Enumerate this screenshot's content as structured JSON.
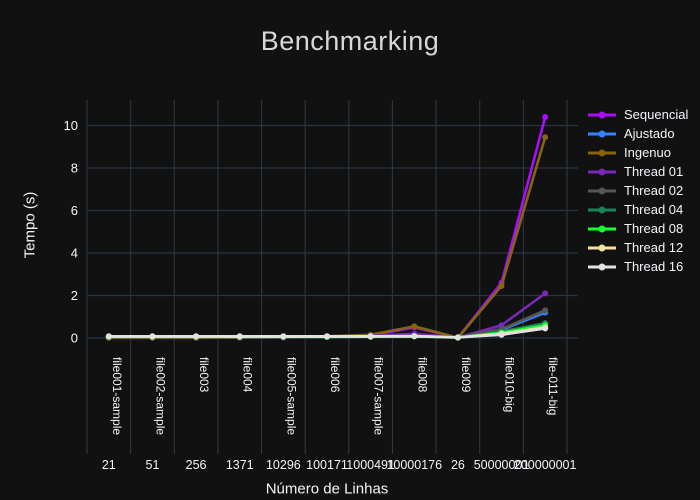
{
  "chart_data": {
    "type": "line",
    "title": "Benchmarking",
    "xlabel": "Número de Linhas",
    "ylabel": "Tempo (s)",
    "categories": [
      "file001-sample",
      "file002-sample",
      "file003",
      "file004",
      "file005-sample",
      "file006",
      "file007-sample",
      "file008",
      "file009",
      "file010-big",
      "file-011-big"
    ],
    "line_counts": [
      "21",
      "51",
      "256",
      "1371",
      "10296",
      "100171",
      "1000491",
      "10000176",
      "26",
      "50000001",
      "200000001"
    ],
    "yticks": [
      0,
      2,
      4,
      6,
      8,
      10
    ],
    "ylim": [
      -0.56,
      11.2
    ],
    "grid": true,
    "legend_position": "right",
    "colors": {
      "background": "#111111",
      "grid": "#283442",
      "divider": "#333d47",
      "text": "#f2f5fa",
      "title": "#d8d8d8"
    },
    "series": [
      {
        "name": "Sequencial",
        "color": "#AA0DFE",
        "values": [
          0.01,
          0.01,
          0.01,
          0.02,
          0.03,
          0.06,
          0.12,
          0.5,
          0.01,
          2.6,
          10.4
        ]
      },
      {
        "name": "Ajustado",
        "color": "#3283FE",
        "values": [
          0.02,
          0.02,
          0.02,
          0.02,
          0.03,
          0.04,
          0.06,
          0.08,
          0.02,
          0.38,
          1.2
        ]
      },
      {
        "name": "Ingenuo",
        "color": "#85660D",
        "values": [
          0.01,
          0.01,
          0.01,
          0.02,
          0.04,
          0.08,
          0.15,
          0.55,
          0.01,
          2.45,
          9.45
        ]
      },
      {
        "name": "Thread 01",
        "color": "#782AB6",
        "values": [
          0.05,
          0.05,
          0.05,
          0.05,
          0.05,
          0.06,
          0.09,
          0.2,
          0.02,
          0.6,
          2.1
        ]
      },
      {
        "name": "Thread 02",
        "color": "#565656",
        "values": [
          0.05,
          0.05,
          0.05,
          0.05,
          0.05,
          0.05,
          0.07,
          0.1,
          0.02,
          0.42,
          1.3
        ]
      },
      {
        "name": "Thread 04",
        "color": "#1C8356",
        "values": [
          0.05,
          0.05,
          0.05,
          0.05,
          0.05,
          0.05,
          0.06,
          0.08,
          0.02,
          0.3,
          0.7
        ]
      },
      {
        "name": "Thread 08",
        "color": "#16FF32",
        "values": [
          0.06,
          0.06,
          0.06,
          0.06,
          0.06,
          0.06,
          0.06,
          0.08,
          0.02,
          0.25,
          0.6
        ]
      },
      {
        "name": "Thread 12",
        "color": "#F7E1A0",
        "values": [
          0.07,
          0.07,
          0.07,
          0.07,
          0.07,
          0.07,
          0.07,
          0.08,
          0.03,
          0.2,
          0.5
        ]
      },
      {
        "name": "Thread 16",
        "color": "#E2E2E2",
        "values": [
          0.08,
          0.08,
          0.08,
          0.08,
          0.08,
          0.08,
          0.08,
          0.09,
          0.03,
          0.15,
          0.45
        ]
      }
    ]
  }
}
